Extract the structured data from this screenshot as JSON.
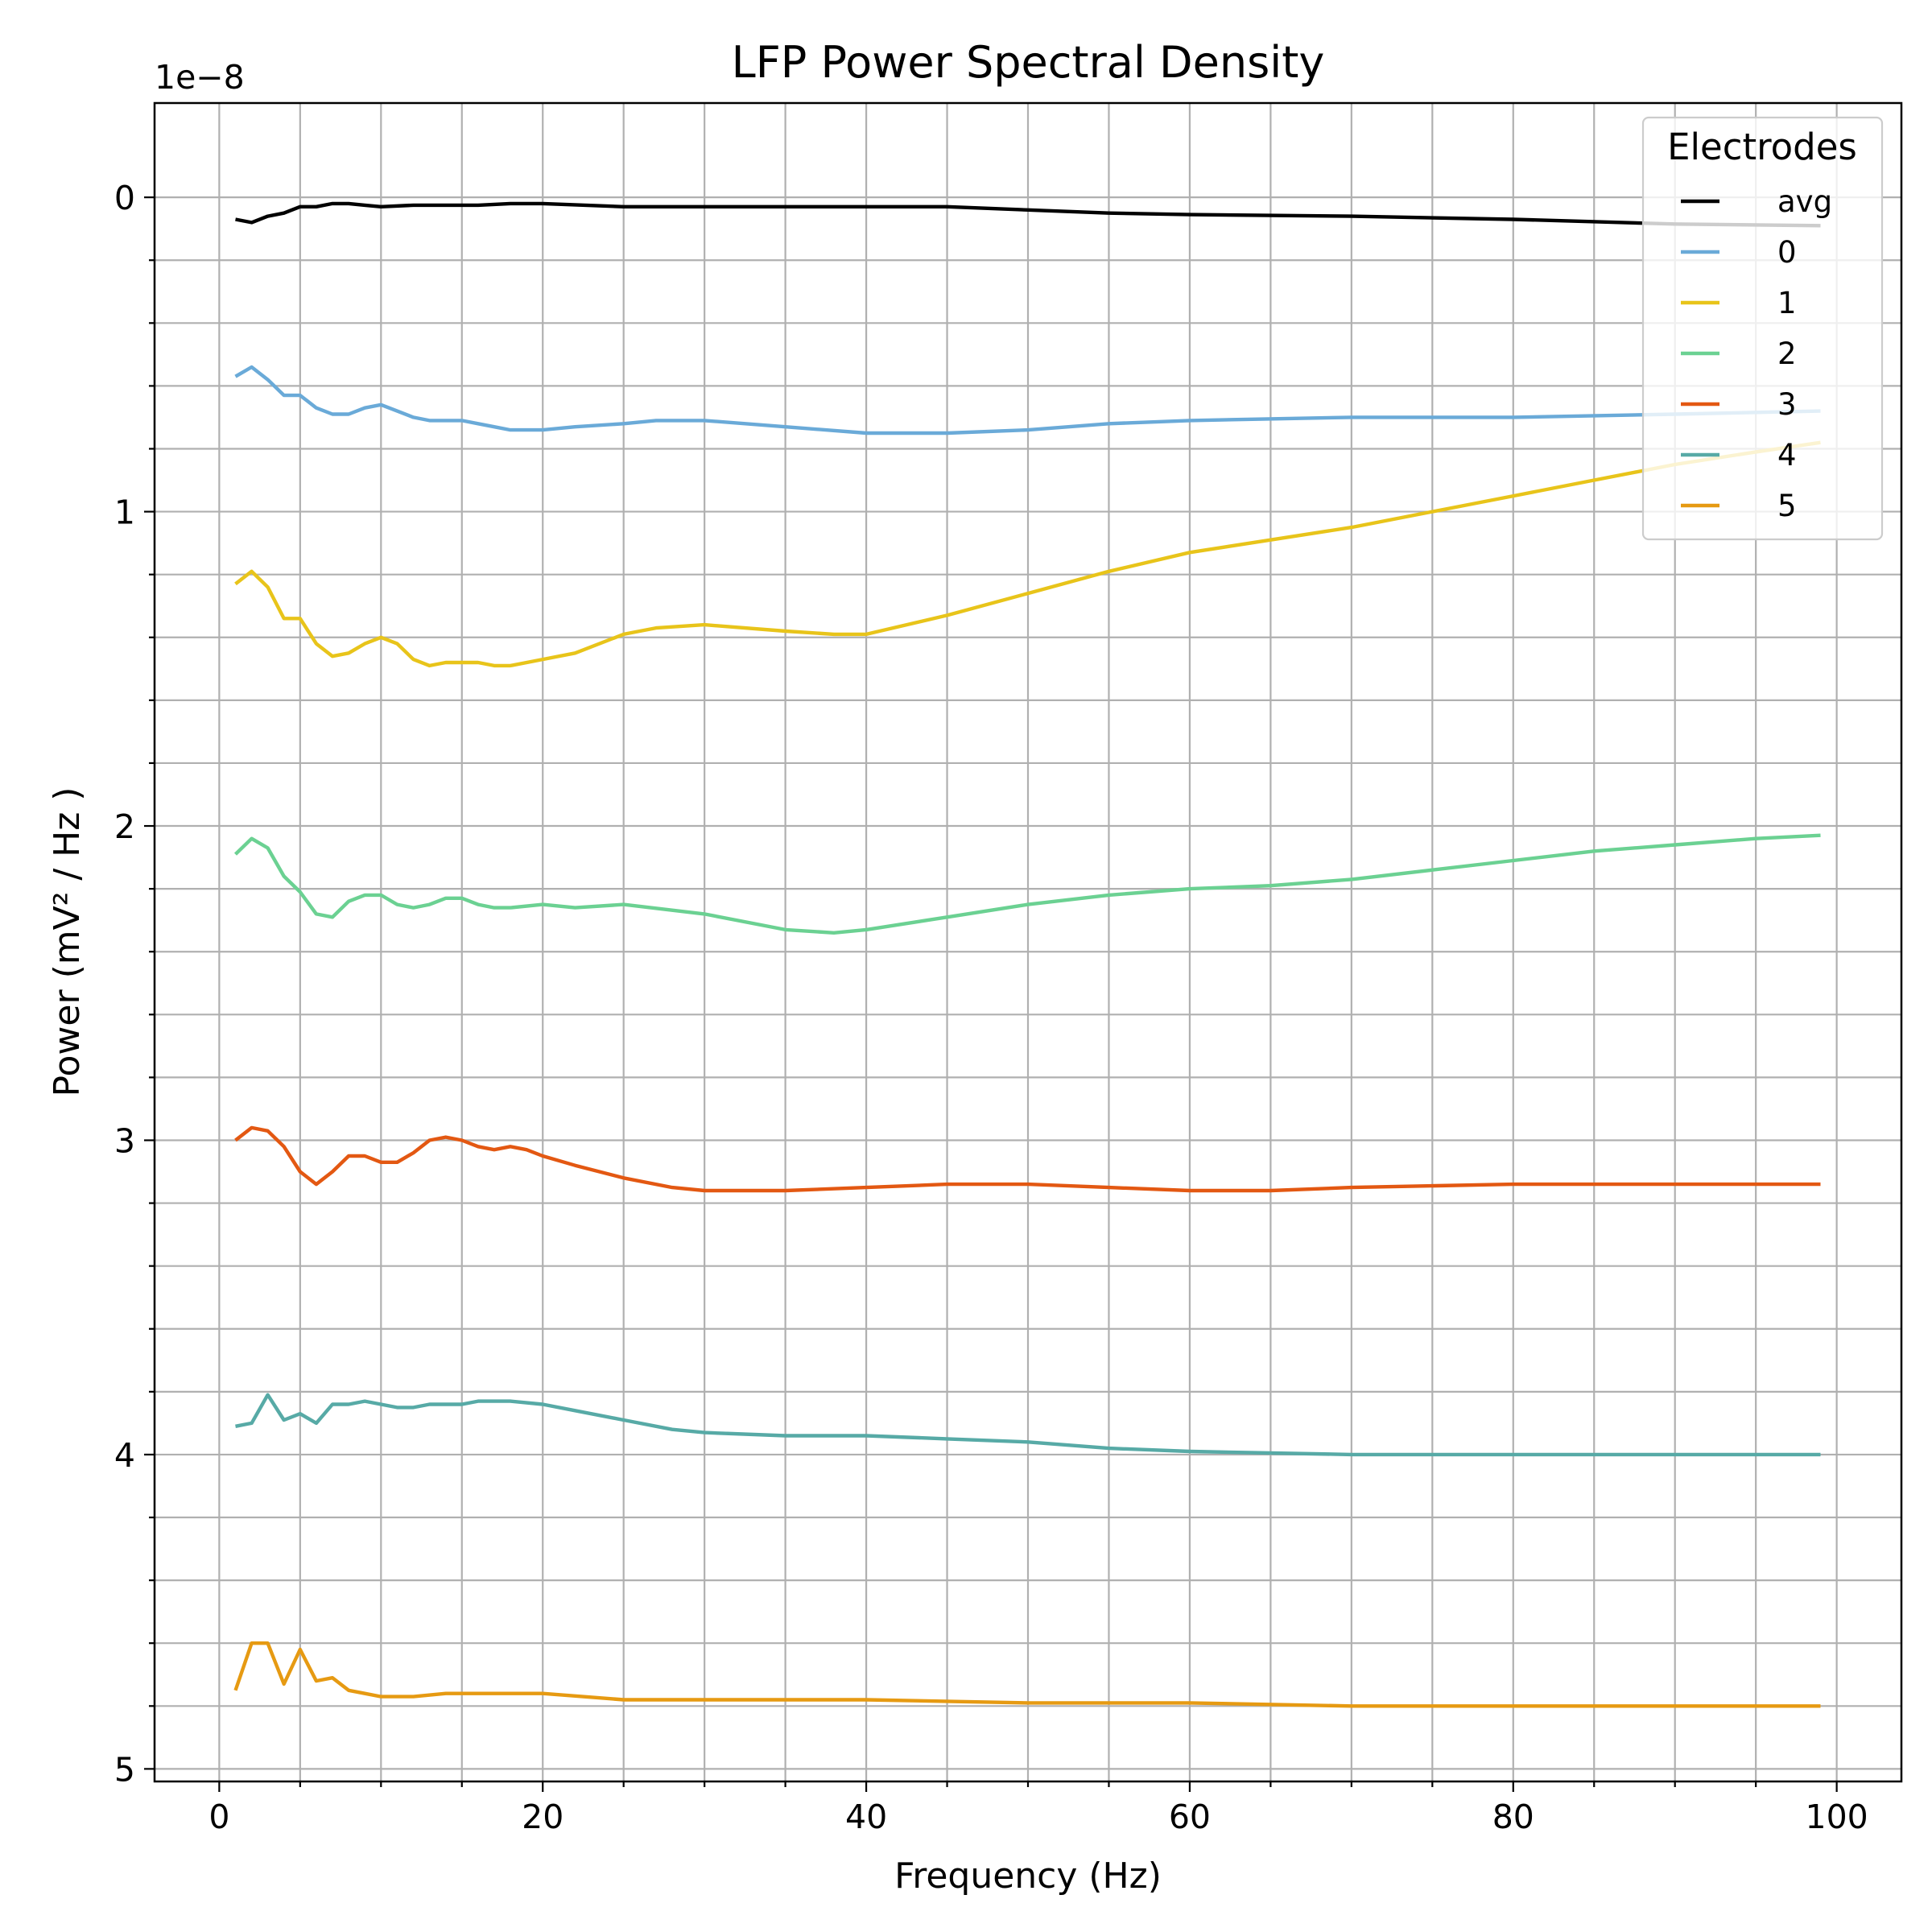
{
  "chart_data": {
    "type": "line",
    "title": "LFP Power Spectral Density",
    "xlabel": "Frequency (Hz)",
    "ylabel": "Power (mV² / Hz )",
    "y_offset_label": "1e−8",
    "y_inverted": true,
    "xlim": [
      -4,
      104
    ],
    "ylim": [
      5.04,
      -0.3
    ],
    "x_ticks": [
      0,
      20,
      40,
      60,
      80,
      100
    ],
    "x_tick_labels": [
      "0",
      "20",
      "40",
      "60",
      "80",
      "100"
    ],
    "y_ticks": [
      0,
      1,
      2,
      3,
      4,
      5
    ],
    "y_tick_labels": [
      "0",
      "1",
      "2",
      "3",
      "4",
      "5"
    ],
    "grid": true,
    "legend": {
      "title": "Electrodes",
      "placement": "top-right"
    },
    "series": [
      {
        "name": "avg",
        "color": "#000000",
        "points": [
          [
            1,
            0.07
          ],
          [
            2,
            0.08
          ],
          [
            3,
            0.06
          ],
          [
            4,
            0.05
          ],
          [
            5,
            0.03
          ],
          [
            6,
            0.03
          ],
          [
            7,
            0.02
          ],
          [
            8,
            0.02
          ],
          [
            9,
            0.025
          ],
          [
            10,
            0.03
          ],
          [
            12,
            0.025
          ],
          [
            14,
            0.025
          ],
          [
            16,
            0.025
          ],
          [
            18,
            0.02
          ],
          [
            20,
            0.02
          ],
          [
            25,
            0.03
          ],
          [
            30,
            0.03
          ],
          [
            35,
            0.03
          ],
          [
            40,
            0.03
          ],
          [
            45,
            0.03
          ],
          [
            50,
            0.04
          ],
          [
            55,
            0.05
          ],
          [
            60,
            0.055
          ],
          [
            70,
            0.06
          ],
          [
            80,
            0.07
          ],
          [
            90,
            0.085
          ],
          [
            99,
            0.09
          ]
        ]
      },
      {
        "name": "0",
        "color": "#6aaad8",
        "points": [
          [
            1,
            0.57
          ],
          [
            2,
            0.54
          ],
          [
            3,
            0.58
          ],
          [
            4,
            0.63
          ],
          [
            5,
            0.63
          ],
          [
            6,
            0.67
          ],
          [
            7,
            0.69
          ],
          [
            8,
            0.69
          ],
          [
            9,
            0.67
          ],
          [
            10,
            0.66
          ],
          [
            11,
            0.68
          ],
          [
            12,
            0.7
          ],
          [
            13,
            0.71
          ],
          [
            14,
            0.71
          ],
          [
            15,
            0.71
          ],
          [
            16,
            0.72
          ],
          [
            17,
            0.73
          ],
          [
            18,
            0.74
          ],
          [
            20,
            0.74
          ],
          [
            22,
            0.73
          ],
          [
            25,
            0.72
          ],
          [
            27,
            0.71
          ],
          [
            30,
            0.71
          ],
          [
            35,
            0.73
          ],
          [
            40,
            0.75
          ],
          [
            42,
            0.75
          ],
          [
            45,
            0.75
          ],
          [
            50,
            0.74
          ],
          [
            55,
            0.72
          ],
          [
            60,
            0.71
          ],
          [
            70,
            0.7
          ],
          [
            80,
            0.7
          ],
          [
            90,
            0.69
          ],
          [
            99,
            0.68
          ]
        ]
      },
      {
        "name": "1",
        "color": "#e8c41a",
        "points": [
          [
            1,
            1.23
          ],
          [
            2,
            1.19
          ],
          [
            3,
            1.24
          ],
          [
            4,
            1.34
          ],
          [
            5,
            1.34
          ],
          [
            6,
            1.42
          ],
          [
            7,
            1.46
          ],
          [
            8,
            1.45
          ],
          [
            9,
            1.42
          ],
          [
            10,
            1.4
          ],
          [
            11,
            1.42
          ],
          [
            12,
            1.47
          ],
          [
            13,
            1.49
          ],
          [
            14,
            1.48
          ],
          [
            15,
            1.48
          ],
          [
            16,
            1.48
          ],
          [
            17,
            1.49
          ],
          [
            18,
            1.49
          ],
          [
            20,
            1.47
          ],
          [
            22,
            1.45
          ],
          [
            25,
            1.39
          ],
          [
            27,
            1.37
          ],
          [
            30,
            1.36
          ],
          [
            35,
            1.38
          ],
          [
            38,
            1.39
          ],
          [
            40,
            1.39
          ],
          [
            45,
            1.33
          ],
          [
            50,
            1.26
          ],
          [
            55,
            1.19
          ],
          [
            60,
            1.13
          ],
          [
            65,
            1.09
          ],
          [
            70,
            1.05
          ],
          [
            75,
            1.0
          ],
          [
            80,
            0.95
          ],
          [
            85,
            0.9
          ],
          [
            90,
            0.85
          ],
          [
            95,
            0.81
          ],
          [
            99,
            0.78
          ]
        ]
      },
      {
        "name": "2",
        "color": "#6bd192",
        "points": [
          [
            1,
            2.09
          ],
          [
            2,
            2.04
          ],
          [
            3,
            2.07
          ],
          [
            4,
            2.16
          ],
          [
            5,
            2.21
          ],
          [
            6,
            2.28
          ],
          [
            7,
            2.29
          ],
          [
            8,
            2.24
          ],
          [
            9,
            2.22
          ],
          [
            10,
            2.22
          ],
          [
            11,
            2.25
          ],
          [
            12,
            2.26
          ],
          [
            13,
            2.25
          ],
          [
            14,
            2.23
          ],
          [
            15,
            2.23
          ],
          [
            16,
            2.25
          ],
          [
            17,
            2.26
          ],
          [
            18,
            2.26
          ],
          [
            20,
            2.25
          ],
          [
            22,
            2.26
          ],
          [
            25,
            2.25
          ],
          [
            30,
            2.28
          ],
          [
            35,
            2.33
          ],
          [
            38,
            2.34
          ],
          [
            40,
            2.33
          ],
          [
            45,
            2.29
          ],
          [
            50,
            2.25
          ],
          [
            55,
            2.22
          ],
          [
            60,
            2.2
          ],
          [
            65,
            2.19
          ],
          [
            70,
            2.17
          ],
          [
            75,
            2.14
          ],
          [
            80,
            2.11
          ],
          [
            85,
            2.08
          ],
          [
            90,
            2.06
          ],
          [
            95,
            2.04
          ],
          [
            99,
            2.03
          ]
        ]
      },
      {
        "name": "3",
        "color": "#e35812",
        "points": [
          [
            1,
            3.0
          ],
          [
            2,
            2.96
          ],
          [
            3,
            2.97
          ],
          [
            4,
            3.02
          ],
          [
            5,
            3.1
          ],
          [
            6,
            3.14
          ],
          [
            7,
            3.1
          ],
          [
            8,
            3.05
          ],
          [
            9,
            3.05
          ],
          [
            10,
            3.07
          ],
          [
            11,
            3.07
          ],
          [
            12,
            3.04
          ],
          [
            13,
            3.0
          ],
          [
            14,
            2.99
          ],
          [
            15,
            3.0
          ],
          [
            16,
            3.02
          ],
          [
            17,
            3.03
          ],
          [
            18,
            3.02
          ],
          [
            19,
            3.03
          ],
          [
            20,
            3.05
          ],
          [
            22,
            3.08
          ],
          [
            25,
            3.12
          ],
          [
            28,
            3.15
          ],
          [
            30,
            3.16
          ],
          [
            33,
            3.16
          ],
          [
            35,
            3.16
          ],
          [
            40,
            3.15
          ],
          [
            45,
            3.14
          ],
          [
            50,
            3.14
          ],
          [
            55,
            3.15
          ],
          [
            60,
            3.16
          ],
          [
            65,
            3.16
          ],
          [
            70,
            3.15
          ],
          [
            80,
            3.14
          ],
          [
            90,
            3.14
          ],
          [
            99,
            3.14
          ]
        ]
      },
      {
        "name": "4",
        "color": "#57aaa6",
        "points": [
          [
            1,
            3.91
          ],
          [
            2,
            3.9
          ],
          [
            3,
            3.81
          ],
          [
            4,
            3.89
          ],
          [
            5,
            3.87
          ],
          [
            6,
            3.9
          ],
          [
            7,
            3.84
          ],
          [
            8,
            3.84
          ],
          [
            9,
            3.83
          ],
          [
            10,
            3.84
          ],
          [
            11,
            3.85
          ],
          [
            12,
            3.85
          ],
          [
            13,
            3.84
          ],
          [
            14,
            3.84
          ],
          [
            15,
            3.84
          ],
          [
            16,
            3.83
          ],
          [
            18,
            3.83
          ],
          [
            20,
            3.84
          ],
          [
            22,
            3.86
          ],
          [
            25,
            3.89
          ],
          [
            28,
            3.92
          ],
          [
            30,
            3.93
          ],
          [
            35,
            3.94
          ],
          [
            40,
            3.94
          ],
          [
            45,
            3.95
          ],
          [
            50,
            3.96
          ],
          [
            55,
            3.98
          ],
          [
            60,
            3.99
          ],
          [
            70,
            4.0
          ],
          [
            80,
            4.0
          ],
          [
            90,
            4.0
          ],
          [
            99,
            4.0
          ]
        ]
      },
      {
        "name": "5",
        "color": "#e69a12",
        "points": [
          [
            1,
            4.75
          ],
          [
            2,
            4.6
          ],
          [
            3,
            4.6
          ],
          [
            4,
            4.73
          ],
          [
            5,
            4.62
          ],
          [
            6,
            4.72
          ],
          [
            7,
            4.71
          ],
          [
            8,
            4.75
          ],
          [
            9,
            4.76
          ],
          [
            10,
            4.77
          ],
          [
            11,
            4.77
          ],
          [
            12,
            4.77
          ],
          [
            14,
            4.76
          ],
          [
            16,
            4.76
          ],
          [
            18,
            4.76
          ],
          [
            20,
            4.76
          ],
          [
            25,
            4.78
          ],
          [
            30,
            4.78
          ],
          [
            35,
            4.78
          ],
          [
            40,
            4.78
          ],
          [
            50,
            4.79
          ],
          [
            60,
            4.79
          ],
          [
            70,
            4.8
          ],
          [
            80,
            4.8
          ],
          [
            90,
            4.8
          ],
          [
            99,
            4.8
          ]
        ]
      }
    ]
  }
}
